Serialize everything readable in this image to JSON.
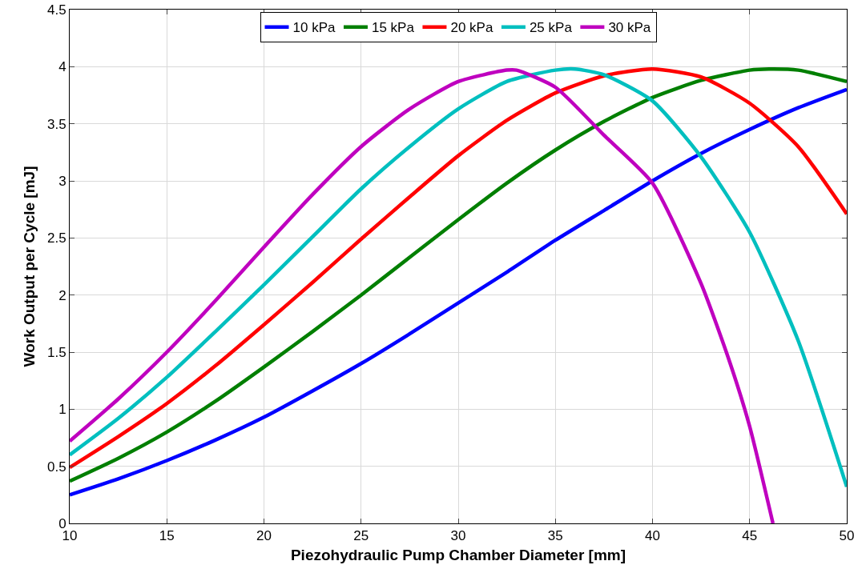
{
  "chart_data": {
    "type": "line",
    "xlabel": "Piezohydraulic Pump Chamber Diameter [mm]",
    "ylabel": "Work Output per Cycle [mJ]",
    "xlim": [
      10,
      50
    ],
    "xticks": [
      10,
      15,
      20,
      25,
      30,
      35,
      40,
      45,
      50
    ],
    "ylim": [
      0,
      4.5
    ],
    "yticks": [
      0,
      0.5,
      1,
      1.5,
      2,
      2.5,
      3,
      3.5,
      4,
      4.5
    ],
    "grid": true,
    "legend": "top",
    "marker": "none",
    "line_style": "solid",
    "series": [
      {
        "name": "10 kPa",
        "color": "#0000ff",
        "x": [
          10,
          12.5,
          15,
          17.5,
          20,
          22.5,
          25,
          27.5,
          30,
          32.5,
          35,
          37.5,
          40,
          42.5,
          45,
          47.5,
          50
        ],
        "values": [
          0.25,
          0.39,
          0.55,
          0.73,
          0.93,
          1.16,
          1.4,
          1.66,
          1.93,
          2.2,
          2.48,
          2.74,
          3.0,
          3.24,
          3.45,
          3.64,
          3.8
        ]
      },
      {
        "name": "15 kPa",
        "color": "#007f00",
        "x": [
          10,
          12.5,
          15,
          17.5,
          20,
          22.5,
          25,
          27.5,
          30,
          32.5,
          35,
          37.5,
          40,
          42.5,
          45,
          46,
          47.5,
          50
        ],
        "values": [
          0.37,
          0.57,
          0.8,
          1.07,
          1.37,
          1.68,
          2.0,
          2.33,
          2.66,
          2.98,
          3.27,
          3.52,
          3.73,
          3.88,
          3.97,
          3.98,
          3.97,
          3.87
        ]
      },
      {
        "name": "20 kPa",
        "color": "#ff0000",
        "x": [
          10,
          12.5,
          15,
          17.5,
          20,
          22.5,
          25,
          27.5,
          30,
          32.5,
          35,
          37.5,
          40,
          42.5,
          45,
          47.5,
          50
        ],
        "values": [
          0.49,
          0.76,
          1.05,
          1.38,
          1.74,
          2.11,
          2.49,
          2.86,
          3.22,
          3.53,
          3.77,
          3.92,
          3.98,
          3.91,
          3.68,
          3.3,
          2.71
        ]
      },
      {
        "name": "25 kPa",
        "color": "#00bfbf",
        "x": [
          10,
          12.5,
          15,
          17.5,
          20,
          22.5,
          25,
          27.5,
          30,
          32.5,
          35,
          36,
          37.5,
          40,
          42.5,
          45,
          47.5,
          50
        ],
        "values": [
          0.6,
          0.92,
          1.28,
          1.68,
          2.09,
          2.51,
          2.93,
          3.3,
          3.63,
          3.87,
          3.97,
          3.98,
          3.93,
          3.7,
          3.21,
          2.55,
          1.6,
          0.32
        ]
      },
      {
        "name": "30 kPa",
        "color": "#bf00bf",
        "x": [
          10,
          12.5,
          15,
          17.5,
          20,
          22.5,
          25,
          27.5,
          30,
          32.5,
          33,
          35,
          37.5,
          40,
          42.5,
          44,
          45,
          46.2
        ],
        "values": [
          0.72,
          1.09,
          1.5,
          1.95,
          2.42,
          2.88,
          3.3,
          3.63,
          3.87,
          3.97,
          3.97,
          3.82,
          3.4,
          2.98,
          2.1,
          1.4,
          0.85,
          0
        ]
      }
    ]
  }
}
